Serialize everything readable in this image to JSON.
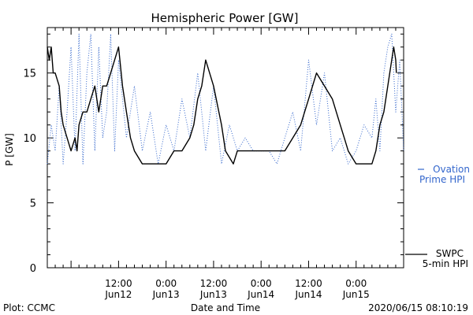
{
  "chart_data": {
    "type": "line",
    "title": "Hemispheric Power [GW]",
    "xlabel": "Date and Time",
    "ylabel": "P [GW]",
    "ylim": [
      0,
      18.5
    ],
    "xlim": [
      "2020-06-11 18:00",
      "2020-06-15 12:00"
    ],
    "y_ticks": [
      0,
      5,
      10,
      15
    ],
    "x_ticks": [
      {
        "time": "2020-06-12 12:00",
        "line1": "12:00",
        "line2": "Jun12"
      },
      {
        "time": "2020-06-13 00:00",
        "line1": "0:00",
        "line2": "Jun13"
      },
      {
        "time": "2020-06-13 12:00",
        "line1": "12:00",
        "line2": "Jun13"
      },
      {
        "time": "2020-06-14 00:00",
        "line1": "0:00",
        "line2": "Jun14"
      },
      {
        "time": "2020-06-14 12:00",
        "line1": "12:00",
        "line2": "Jun14"
      },
      {
        "time": "2020-06-15 00:00",
        "line1": "0:00",
        "line2": "Jun15"
      }
    ],
    "series": [
      {
        "name": "SWPC 5-min HPI",
        "color": "#000000",
        "style": "solid",
        "x": [
          "2020-06-11 18:00",
          "2020-06-11 18:30",
          "2020-06-11 19:00",
          "2020-06-11 19:30",
          "2020-06-11 20:00",
          "2020-06-11 21:00",
          "2020-06-11 21:30",
          "2020-06-11 22:00",
          "2020-06-11 23:00",
          "2020-06-12 00:00",
          "2020-06-12 01:00",
          "2020-06-12 01:30",
          "2020-06-12 02:00",
          "2020-06-12 03:00",
          "2020-06-12 04:00",
          "2020-06-12 05:00",
          "2020-06-12 06:00",
          "2020-06-12 07:00",
          "2020-06-12 08:00",
          "2020-06-12 09:00",
          "2020-06-12 10:00",
          "2020-06-12 11:00",
          "2020-06-12 12:00",
          "2020-06-12 13:00",
          "2020-06-12 14:00",
          "2020-06-12 15:00",
          "2020-06-12 16:00",
          "2020-06-12 18:00",
          "2020-06-12 20:00",
          "2020-06-12 22:00",
          "2020-06-13 00:00",
          "2020-06-13 02:00",
          "2020-06-13 04:00",
          "2020-06-13 06:00",
          "2020-06-13 07:00",
          "2020-06-13 08:00",
          "2020-06-13 09:00",
          "2020-06-13 10:00",
          "2020-06-13 12:00",
          "2020-06-13 14:00",
          "2020-06-13 15:00",
          "2020-06-13 17:00",
          "2020-06-13 18:00",
          "2020-06-13 19:00",
          "2020-06-13 20:00",
          "2020-06-13 21:00",
          "2020-06-13 22:00",
          "2020-06-13 23:00",
          "2020-06-14 00:00",
          "2020-06-14 02:00",
          "2020-06-14 04:00",
          "2020-06-14 06:00",
          "2020-06-14 08:00",
          "2020-06-14 10:00",
          "2020-06-14 11:00",
          "2020-06-14 12:00",
          "2020-06-14 13:00",
          "2020-06-14 14:00",
          "2020-06-14 16:00",
          "2020-06-14 18:00",
          "2020-06-14 19:00",
          "2020-06-14 20:00",
          "2020-06-14 21:00",
          "2020-06-14 22:00",
          "2020-06-15 00:00",
          "2020-06-15 02:00",
          "2020-06-15 04:00",
          "2020-06-15 05:00",
          "2020-06-15 06:00",
          "2020-06-15 07:00",
          "2020-06-15 08:00",
          "2020-06-15 09:00",
          "2020-06-15 09:30",
          "2020-06-15 10:00",
          "2020-06-15 10:10"
        ],
        "y": [
          17,
          16,
          17,
          15,
          15,
          14,
          12,
          11,
          10,
          9,
          10,
          9,
          11,
          12,
          12,
          13,
          14,
          12,
          14,
          14,
          15,
          16,
          17,
          14,
          12,
          10,
          9,
          8,
          8,
          8,
          8,
          9,
          9,
          10,
          11,
          13,
          14,
          16,
          14,
          11,
          9,
          8,
          9,
          9,
          9,
          9,
          9,
          9,
          9,
          9,
          9,
          9,
          10,
          11,
          12,
          13,
          14,
          15,
          14,
          13,
          12,
          11,
          10,
          9,
          8,
          8,
          8,
          9,
          11,
          12,
          14,
          16,
          17,
          16,
          15
        ]
      },
      {
        "name": "Ovation Prime HPI",
        "color": "#3366cc",
        "style": "dotted",
        "x": [
          "2020-06-11 18:00",
          "2020-06-11 19:00",
          "2020-06-11 20:00",
          "2020-06-11 21:00",
          "2020-06-11 22:00",
          "2020-06-11 23:00",
          "2020-06-12 00:00",
          "2020-06-12 01:00",
          "2020-06-12 02:00",
          "2020-06-12 03:00",
          "2020-06-12 04:00",
          "2020-06-12 05:00",
          "2020-06-12 06:00",
          "2020-06-12 07:00",
          "2020-06-12 08:00",
          "2020-06-12 09:00",
          "2020-06-12 10:00",
          "2020-06-12 11:00",
          "2020-06-12 12:00",
          "2020-06-12 14:00",
          "2020-06-12 16:00",
          "2020-06-12 18:00",
          "2020-06-12 20:00",
          "2020-06-12 22:00",
          "2020-06-13 00:00",
          "2020-06-13 02:00",
          "2020-06-13 04:00",
          "2020-06-13 06:00",
          "2020-06-13 08:00",
          "2020-06-13 10:00",
          "2020-06-13 12:00",
          "2020-06-13 14:00",
          "2020-06-13 16:00",
          "2020-06-13 18:00",
          "2020-06-13 20:00",
          "2020-06-13 22:00",
          "2020-06-14 00:00",
          "2020-06-14 02:00",
          "2020-06-14 04:00",
          "2020-06-14 06:00",
          "2020-06-14 08:00",
          "2020-06-14 10:00",
          "2020-06-14 12:00",
          "2020-06-14 14:00",
          "2020-06-14 16:00",
          "2020-06-14 18:00",
          "2020-06-14 20:00",
          "2020-06-14 22:00",
          "2020-06-15 00:00",
          "2020-06-15 02:00",
          "2020-06-15 04:00",
          "2020-06-15 05:00",
          "2020-06-15 06:00",
          "2020-06-15 07:00",
          "2020-06-15 08:00",
          "2020-06-15 09:00",
          "2020-06-15 10:00",
          "2020-06-15 11:00",
          "2020-06-15 12:00"
        ],
        "y": [
          8,
          11,
          9,
          14,
          8,
          12,
          17,
          9,
          18,
          8,
          15,
          18,
          9,
          17,
          10,
          12,
          18,
          9,
          16,
          10,
          14,
          9,
          12,
          8,
          11,
          9,
          13,
          10,
          15,
          9,
          14,
          8,
          11,
          9,
          10,
          9,
          9,
          9,
          8,
          10,
          12,
          9,
          16,
          11,
          15,
          9,
          10,
          8,
          9,
          11,
          10,
          13,
          9,
          15,
          17,
          18,
          12,
          16,
          9
        ]
      }
    ],
    "legend": [
      {
        "line1": "SWPC",
        "line2": "5-min HPI",
        "color": "#000000",
        "style": "solid"
      },
      {
        "line1": "Ovation",
        "line2": "Prime HPI",
        "color": "#3366cc",
        "style": "dotted"
      }
    ],
    "legend_placement": "right",
    "grid": false
  },
  "footer": {
    "left": "Plot: CCMC",
    "right": "2020/06/15 08:10:19"
  }
}
